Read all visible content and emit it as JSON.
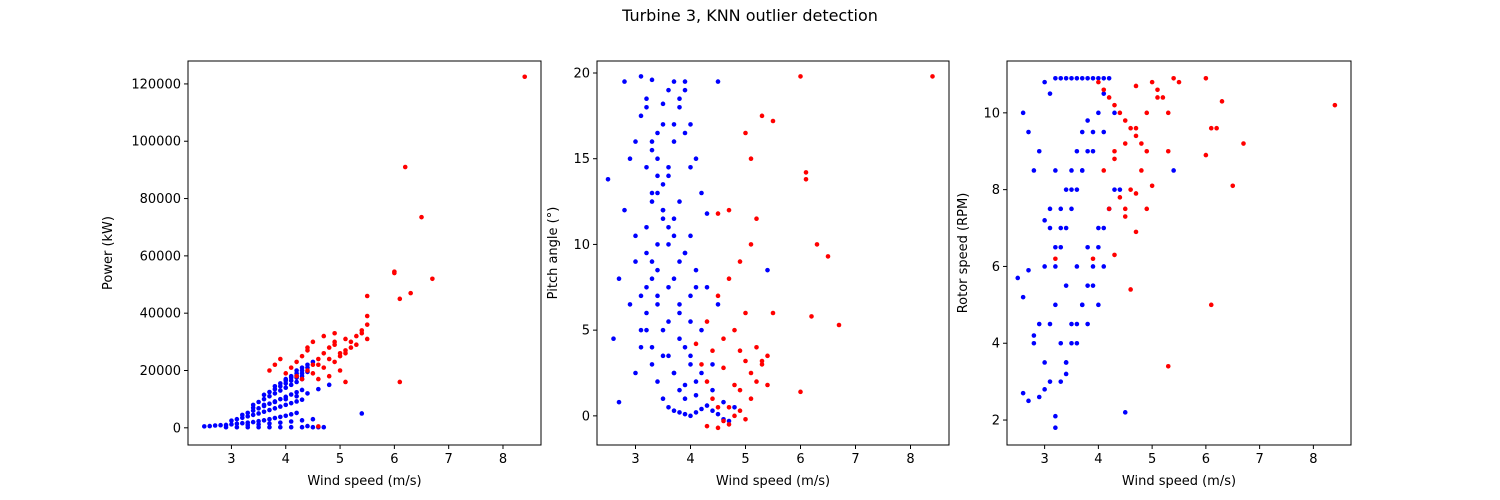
{
  "figure": {
    "title": "Turbine 3, KNN outlier detection"
  },
  "colors": {
    "inlier": "#0000ff",
    "outlier": "#ff0000",
    "axes": "#000000"
  },
  "chart_data": [
    {
      "type": "scatter",
      "title": "",
      "xlabel": "Wind speed (m/s)",
      "ylabel": "Power (kW)",
      "xlim": [
        2.2,
        8.7
      ],
      "ylim": [
        -6000,
        128000
      ],
      "xticks": [
        3,
        4,
        5,
        6,
        7,
        8
      ],
      "yticks": [
        0,
        20000,
        40000,
        60000,
        80000,
        100000,
        120000
      ],
      "grid": false,
      "legend": "none",
      "series": [
        {
          "color": "inlier",
          "x": [
            2.5,
            2.6,
            2.7,
            2.8,
            2.9,
            3.0,
            3.1,
            3.2,
            3.3,
            3.4,
            3.5,
            3.6,
            3.7,
            3.8,
            3.9,
            4.0,
            4.1,
            4.2,
            3.0,
            3.1,
            3.2,
            3.3,
            3.4,
            3.5,
            3.6,
            3.7,
            3.8,
            3.9,
            4.0,
            4.1,
            4.2,
            4.3,
            3.2,
            3.3,
            3.4,
            3.5,
            3.6,
            3.7,
            3.8,
            3.9,
            4.0,
            4.1,
            4.2,
            4.3,
            3.4,
            3.5,
            3.6,
            3.7,
            3.8,
            3.9,
            4.0,
            4.1,
            4.2,
            4.3,
            3.6,
            3.7,
            3.8,
            3.9,
            4.0,
            4.1,
            4.2,
            4.3,
            3.8,
            3.9,
            4.0,
            4.1,
            4.2,
            4.3,
            4.4,
            4.0,
            4.1,
            4.2,
            4.3,
            4.4,
            4.2,
            4.3,
            4.4,
            4.5,
            3.3,
            3.5,
            3.7,
            3.9,
            4.1,
            4.3,
            4.5,
            5.4,
            4.4,
            2.9,
            3.1,
            3.3,
            3.5,
            3.7,
            3.9,
            4.1,
            4.3,
            4.5,
            4.6,
            4.7,
            3.4,
            3.6,
            3.8,
            4.0,
            4.2,
            4.4,
            4.6,
            4.8
          ],
          "y": [
            500,
            600,
            800,
            900,
            1000,
            1200,
            1400,
            1600,
            1800,
            2000,
            2300,
            2600,
            3000,
            3400,
            3800,
            4200,
            4700,
            5200,
            2500,
            3000,
            3500,
            4000,
            4500,
            5000,
            5600,
            6200,
            6800,
            7400,
            8000,
            8600,
            9200,
            9800,
            4500,
            5200,
            6000,
            6800,
            7600,
            8400,
            9200,
            10000,
            10800,
            11600,
            12400,
            13200,
            8000,
            9000,
            10000,
            11000,
            12000,
            13000,
            14000,
            15000,
            16000,
            17000,
            11500,
            12500,
            13500,
            14500,
            15500,
            16500,
            17500,
            18000,
            14500,
            15500,
            16500,
            17500,
            18200,
            19000,
            19500,
            17000,
            18000,
            19000,
            20000,
            21000,
            20000,
            21000,
            22000,
            23000,
            1000,
            1200,
            1500,
            1800,
            2200,
            2600,
            3000,
            5000,
            600,
            200,
            200,
            200,
            200,
            200,
            200,
            200,
            200,
            200,
            200,
            200,
            7000,
            8000,
            9000,
            10000,
            11000,
            12000,
            13500,
            15000
          ]
        },
        {
          "color": "outlier",
          "x": [
            3.7,
            3.8,
            3.9,
            4.0,
            4.1,
            4.2,
            4.3,
            4.4,
            4.5,
            4.6,
            4.7,
            4.8,
            4.9,
            5.0,
            5.1,
            5.2,
            5.3,
            5.4,
            5.5,
            4.3,
            4.5,
            4.7,
            4.9,
            5.1,
            5.3,
            5.5,
            4.2,
            4.4,
            4.6,
            4.8,
            5.0,
            5.2,
            4.5,
            4.7,
            4.9,
            5.1,
            4.6,
            4.8,
            5.0,
            5.4,
            5.5,
            5.5,
            6.0,
            6.0,
            6.1,
            6.2,
            6.3,
            6.5,
            6.7,
            8.4,
            6.1,
            4.6,
            5.1,
            4.4,
            4.9
          ],
          "y": [
            20000,
            22000,
            24000,
            19000,
            21000,
            23000,
            25000,
            27000,
            22000,
            24000,
            26000,
            28000,
            30000,
            25000,
            27000,
            30000,
            32000,
            33000,
            36000,
            17000,
            19000,
            21000,
            23000,
            26000,
            29000,
            31000,
            18000,
            20000,
            22000,
            24000,
            26000,
            28000,
            30000,
            32000,
            29000,
            31000,
            17000,
            18000,
            20000,
            34000,
            39000,
            46000,
            54000,
            54500,
            45000,
            91000,
            47000,
            73500,
            52000,
            122500,
            16000,
            500,
            16000,
            28000,
            33000
          ]
        }
      ]
    },
    {
      "type": "scatter",
      "title": "",
      "xlabel": "Wind speed (m/s)",
      "ylabel": "Pitch angle (°)",
      "xlim": [
        2.3,
        8.7
      ],
      "ylim": [
        -1.7,
        20.7
      ],
      "xticks": [
        3,
        4,
        5,
        6,
        7,
        8
      ],
      "yticks": [
        0,
        5,
        10,
        15,
        20
      ],
      "grid": false,
      "legend": "none",
      "series": [
        {
          "color": "inlier",
          "x": [
            2.5,
            2.6,
            2.7,
            2.8,
            2.9,
            3.0,
            3.1,
            3.2,
            3.3,
            3.4,
            3.5,
            3.6,
            3.7,
            3.8,
            3.9,
            4.0,
            4.1,
            4.2,
            4.3,
            4.4,
            4.5,
            4.6,
            4.7,
            4.8,
            3.0,
            3.1,
            3.2,
            3.3,
            3.4,
            3.5,
            3.6,
            3.7,
            3.8,
            3.9,
            4.0,
            4.1,
            4.2,
            3.1,
            3.2,
            3.3,
            3.4,
            3.5,
            3.6,
            3.7,
            3.8,
            3.9,
            4.0,
            4.1,
            3.2,
            3.3,
            3.4,
            3.5,
            3.6,
            3.7,
            3.8,
            3.9,
            4.0,
            3.3,
            3.4,
            3.5,
            3.6,
            3.7,
            3.8,
            3.9,
            3.2,
            3.4,
            3.6,
            3.8,
            4.0,
            4.2,
            4.4,
            4.6,
            3.3,
            3.5,
            3.7,
            3.9,
            4.1,
            4.3,
            4.5,
            3.0,
            3.2,
            3.4,
            3.6,
            3.8,
            4.0,
            4.2,
            4.4,
            2.8,
            3.0,
            3.2,
            3.4,
            3.6,
            3.8,
            4.0,
            3.1,
            3.3,
            3.5,
            3.7,
            3.9,
            4.1,
            3.2,
            3.4,
            3.6,
            3.8,
            4.0,
            3.3,
            3.5,
            3.7,
            3.9,
            2.7,
            2.9,
            3.1,
            3.3,
            3.5,
            3.7,
            3.9,
            4.1,
            4.5,
            5.4,
            4.3
          ],
          "y": [
            13.8,
            4.5,
            0.8,
            19.5,
            15.0,
            9.0,
            7.0,
            5.0,
            3.0,
            2.0,
            1.0,
            0.5,
            0.3,
            0.2,
            0.1,
            0.0,
            0.2,
            0.4,
            0.6,
            0.3,
            0.1,
            -0.2,
            -0.3,
            0.5,
            2.5,
            4.0,
            6.0,
            8.0,
            10.0,
            12.0,
            14.0,
            16.0,
            18.0,
            19.5,
            17.0,
            15.0,
            13.0,
            19.8,
            18.0,
            16.0,
            14.0,
            12.0,
            10.0,
            8.0,
            6.0,
            4.0,
            3.0,
            2.0,
            11.0,
            13.0,
            15.0,
            17.0,
            19.0,
            19.5,
            18.5,
            16.5,
            14.5,
            9.0,
            7.0,
            5.0,
            3.5,
            2.5,
            1.5,
            1.0,
            7.5,
            6.5,
            5.5,
            4.5,
            3.5,
            2.5,
            1.5,
            0.8,
            12.5,
            11.5,
            10.5,
            9.5,
            8.5,
            7.5,
            6.5,
            16.0,
            14.5,
            13.0,
            11.0,
            9.0,
            7.0,
            5.0,
            3.0,
            12.0,
            10.5,
            9.5,
            8.5,
            7.5,
            6.5,
            5.5,
            17.5,
            15.5,
            13.5,
            11.5,
            9.5,
            7.5,
            18.5,
            16.5,
            14.5,
            12.5,
            10.5,
            19.6,
            18.2,
            17.0,
            19.0,
            8.0,
            6.5,
            5.0,
            4.0,
            3.5,
            2.5,
            1.8,
            1.2,
            19.5,
            8.5,
            11.8
          ]
        },
        {
          "color": "outlier",
          "x": [
            4.2,
            4.3,
            4.4,
            4.5,
            4.6,
            4.7,
            4.8,
            4.9,
            5.0,
            5.1,
            5.2,
            5.3,
            5.4,
            5.5,
            4.3,
            4.5,
            4.7,
            4.9,
            5.1,
            5.3,
            4.4,
            4.6,
            4.8,
            5.0,
            5.2,
            4.5,
            4.7,
            4.9,
            5.1,
            4.1,
            4.3,
            4.5,
            4.7,
            5.0,
            5.1,
            5.2,
            5.3,
            5.5,
            6.0,
            6.0,
            6.1,
            6.1,
            6.2,
            6.3,
            6.5,
            6.7,
            8.4,
            4.6,
            4.8,
            4.9,
            5.0,
            5.4
          ],
          "y": [
            3.0,
            2.0,
            1.0,
            0.5,
            -0.3,
            -0.5,
            0.0,
            0.3,
            -0.2,
            1.0,
            2.0,
            3.0,
            3.5,
            6.0,
            -0.6,
            -0.7,
            0.5,
            1.5,
            2.5,
            3.2,
            3.8,
            4.5,
            5.0,
            6.0,
            4.0,
            7.0,
            8.0,
            9.0,
            10.0,
            4.2,
            5.5,
            11.8,
            12.0,
            16.5,
            15.0,
            11.5,
            17.5,
            17.2,
            19.8,
            1.4,
            14.2,
            13.8,
            5.8,
            10.0,
            9.3,
            5.3,
            19.8,
            2.8,
            1.8,
            3.8,
            3.2,
            1.8
          ]
        }
      ]
    },
    {
      "type": "scatter",
      "title": "",
      "xlabel": "Wind speed (m/s)",
      "ylabel": "Rotor speed (RPM)",
      "xlim": [
        2.3,
        8.7
      ],
      "ylim": [
        1.35,
        11.35
      ],
      "xticks": [
        3,
        4,
        5,
        6,
        7,
        8
      ],
      "yticks": [
        2,
        4,
        6,
        8,
        10
      ],
      "grid": false,
      "legend": "none",
      "series": [
        {
          "color": "inlier",
          "x": [
            2.5,
            2.6,
            2.6,
            2.7,
            2.7,
            2.8,
            2.8,
            2.9,
            2.9,
            3.0,
            3.0,
            3.0,
            3.1,
            3.1,
            3.1,
            3.2,
            3.2,
            3.2,
            3.3,
            3.3,
            3.3,
            3.4,
            3.4,
            3.4,
            3.5,
            3.5,
            3.5,
            3.6,
            3.6,
            3.6,
            3.7,
            3.7,
            3.7,
            3.8,
            3.8,
            3.8,
            3.9,
            3.9,
            4.0,
            4.0,
            4.1,
            4.1,
            4.2,
            4.2,
            4.3,
            3.2,
            3.3,
            3.4,
            3.5,
            3.6,
            3.7,
            3.8,
            3.9,
            4.0,
            4.1,
            3.1,
            3.3,
            3.5,
            3.7,
            3.9,
            4.1,
            4.3,
            3.2,
            3.4,
            3.6,
            3.8,
            4.0,
            4.2,
            4.4,
            3.3,
            3.5,
            3.7,
            3.9,
            4.1,
            3.4,
            3.6,
            3.8,
            4.0,
            2.6,
            2.8,
            3.0,
            3.2,
            3.4,
            3.0,
            3.2,
            4.5,
            5.4,
            2.7,
            2.9,
            3.1
          ],
          "y": [
            5.7,
            2.7,
            10.0,
            5.9,
            9.5,
            4.0,
            8.5,
            4.5,
            9.0,
            3.5,
            6.0,
            10.8,
            4.5,
            7.5,
            10.5,
            2.1,
            6.5,
            10.9,
            3.0,
            7.0,
            10.9,
            3.5,
            8.0,
            10.9,
            4.0,
            8.5,
            10.9,
            4.5,
            9.0,
            10.9,
            5.0,
            9.5,
            10.9,
            5.5,
            9.8,
            10.9,
            6.0,
            10.9,
            6.5,
            10.9,
            7.0,
            10.9,
            7.5,
            10.9,
            8.0,
            6.0,
            6.5,
            7.0,
            7.5,
            8.0,
            8.5,
            9.0,
            9.5,
            10.0,
            10.5,
            7.0,
            7.5,
            8.0,
            8.5,
            9.0,
            9.5,
            10.0,
            5.0,
            5.5,
            6.0,
            6.5,
            7.0,
            7.5,
            8.0,
            4.0,
            4.5,
            5.0,
            5.5,
            6.0,
            3.5,
            4.0,
            4.5,
            5.0,
            5.2,
            4.2,
            2.8,
            1.8,
            3.2,
            7.2,
            8.5,
            2.2,
            8.5,
            2.5,
            2.6,
            3.0
          ]
        },
        {
          "color": "outlier",
          "x": [
            4.0,
            4.1,
            4.2,
            4.3,
            4.4,
            4.5,
            4.6,
            4.7,
            4.8,
            4.9,
            5.0,
            5.1,
            5.2,
            5.3,
            5.4,
            5.5,
            4.1,
            4.3,
            4.5,
            4.7,
            4.9,
            5.1,
            5.3,
            4.2,
            4.4,
            4.6,
            4.8,
            5.0,
            4.3,
            4.5,
            4.7,
            4.9,
            4.5,
            4.7,
            6.0,
            6.0,
            6.1,
            6.2,
            6.3,
            6.5,
            6.7,
            8.4,
            6.1,
            5.3,
            4.6,
            4.3,
            3.2,
            3.9,
            4.7
          ],
          "y": [
            10.8,
            10.6,
            10.4,
            10.2,
            10.0,
            9.8,
            9.6,
            9.4,
            9.2,
            9.0,
            10.8,
            10.6,
            10.4,
            10.0,
            10.9,
            10.8,
            8.5,
            8.8,
            9.2,
            9.6,
            10.0,
            10.4,
            9.0,
            7.5,
            7.8,
            8.0,
            8.5,
            8.1,
            9.0,
            7.3,
            7.9,
            7.5,
            7.5,
            6.9,
            10.9,
            8.9,
            9.6,
            9.6,
            10.3,
            8.1,
            9.2,
            10.2,
            5.0,
            3.4,
            5.4,
            6.3,
            6.2,
            6.2,
            10.7
          ]
        }
      ]
    }
  ]
}
